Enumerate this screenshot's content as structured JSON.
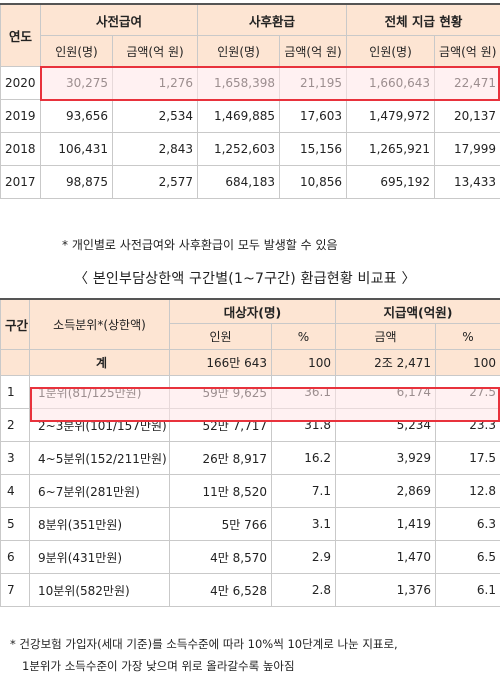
{
  "table1": {
    "header_year": "연도",
    "groups": [
      "사전급여",
      "사후환급",
      "전체 지급 현황"
    ],
    "sub_headers": [
      "인원(명)",
      "금액(억 원)",
      "인원(명)",
      "금액(억 원)",
      "인원(명)",
      "금액(억 원)"
    ],
    "rows": [
      {
        "year": "2020",
        "values": [
          "30,275",
          "1,276",
          "1,658,398",
          "21,195",
          "1,660,643",
          "22,471"
        ]
      },
      {
        "year": "2019",
        "values": [
          "93,656",
          "2,534",
          "1,469,885",
          "17,603",
          "1,479,972",
          "20,137"
        ]
      },
      {
        "year": "2018",
        "values": [
          "106,431",
          "2,843",
          "1,252,603",
          "15,156",
          "1,265,921",
          "17,999"
        ]
      },
      {
        "year": "2017",
        "values": [
          "98,875",
          "2,577",
          "684,183",
          "10,856",
          "695,192",
          "13,433"
        ]
      }
    ]
  },
  "note1": "* 개인별로 사전급여와 사후환급이 모두 발생할 수 있음",
  "title2": "〈 본인부담상한액 구간별(1~7구간) 환급현황 비교표 〉",
  "table2": {
    "header_section": "구간",
    "header_income": "소득분위*(상한액)",
    "groups": [
      "대상자(명)",
      "지급액(억원)"
    ],
    "sub_headers": [
      "인원",
      "%",
      "금액",
      "%"
    ],
    "total": {
      "label": "계",
      "values": [
        "166만 643",
        "100",
        "2조 2,471",
        "100"
      ]
    },
    "rows": [
      {
        "section": "1",
        "income": "1분위(81/125만원)",
        "values": [
          "59만 9,625",
          "36.1",
          "6,174",
          "27.5"
        ]
      },
      {
        "section": "2",
        "income": "2~3분위(101/157만원)",
        "values": [
          "52만 7,717",
          "31.8",
          "5,234",
          "23.3"
        ]
      },
      {
        "section": "3",
        "income": "4~5분위(152/211만원)",
        "values": [
          "26만 8,917",
          "16.2",
          "3,929",
          "17.5"
        ]
      },
      {
        "section": "4",
        "income": "6~7분위(281만원)",
        "values": [
          "11만 8,520",
          "7.1",
          "2,869",
          "12.8"
        ]
      },
      {
        "section": "5",
        "income": "8분위(351만원)",
        "values": [
          "5만 766",
          "3.1",
          "1,419",
          "6.3"
        ]
      },
      {
        "section": "6",
        "income": "9분위(431만원)",
        "values": [
          "4만 8,570",
          "2.9",
          "1,470",
          "6.5"
        ]
      },
      {
        "section": "7",
        "income": "10분위(582만원)",
        "values": [
          "4만 6,528",
          "2.8",
          "1,376",
          "6.1"
        ]
      }
    ]
  },
  "note2_line1": "* 건강보험 가입자(세대 기준)를 소득수준에 따라 10%씩 10단계로 나눈 지표로,",
  "note2_line2": "1분위가 소득수준이 가장 낮으며 위로 올라갈수록 높아짐",
  "colors": {
    "header_bg": "#fde5d3",
    "highlight_border": "#e8323c",
    "highlight_fill": "#ffe6e8"
  }
}
